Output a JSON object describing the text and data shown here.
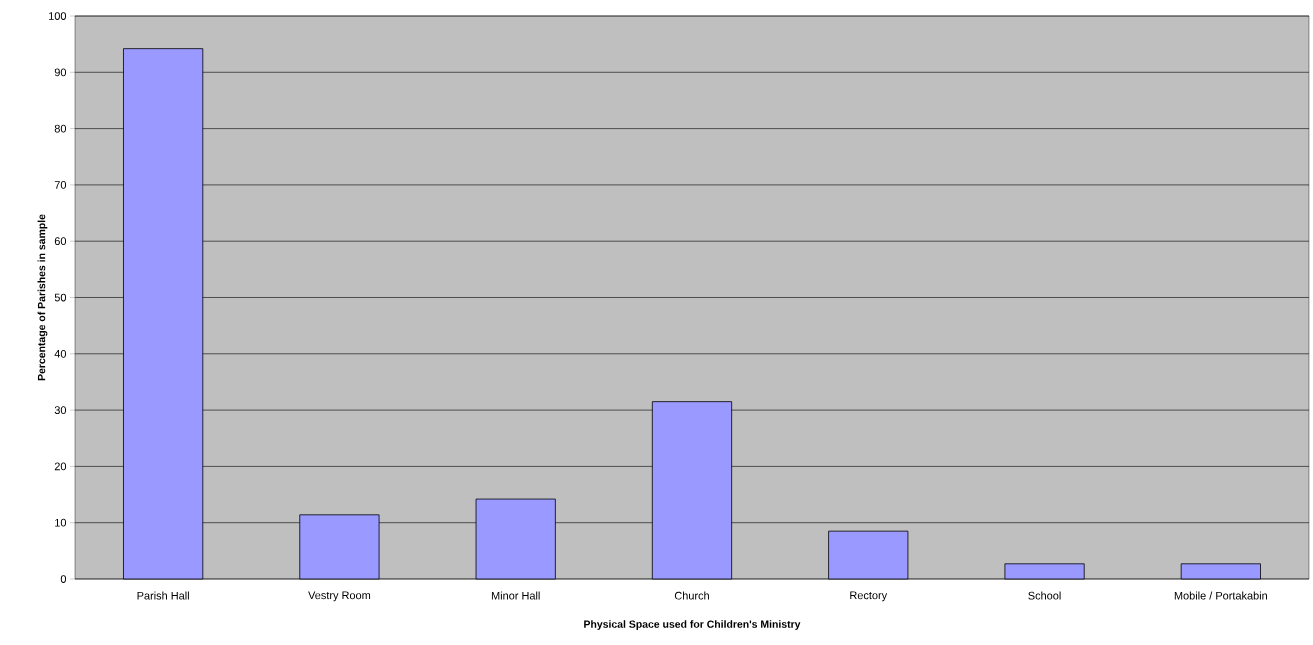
{
  "chart_data": {
    "type": "bar",
    "xlabel": "Physical Space used for Children's Ministry",
    "ylabel": "Percentage of Parishes in sample",
    "categories": [
      "Parish Hall",
      "Vestry Room",
      "Minor Hall",
      "Church",
      "Rectory",
      "School",
      "Mobile / Portakabin"
    ],
    "values": [
      94.2,
      11.4,
      14.2,
      31.5,
      8.5,
      2.7,
      2.7
    ],
    "color": "#9999ff",
    "ylim": [
      0,
      100
    ],
    "yticks": [
      0,
      10,
      20,
      30,
      40,
      50,
      60,
      70,
      80,
      90,
      100
    ],
    "grid": "y"
  }
}
